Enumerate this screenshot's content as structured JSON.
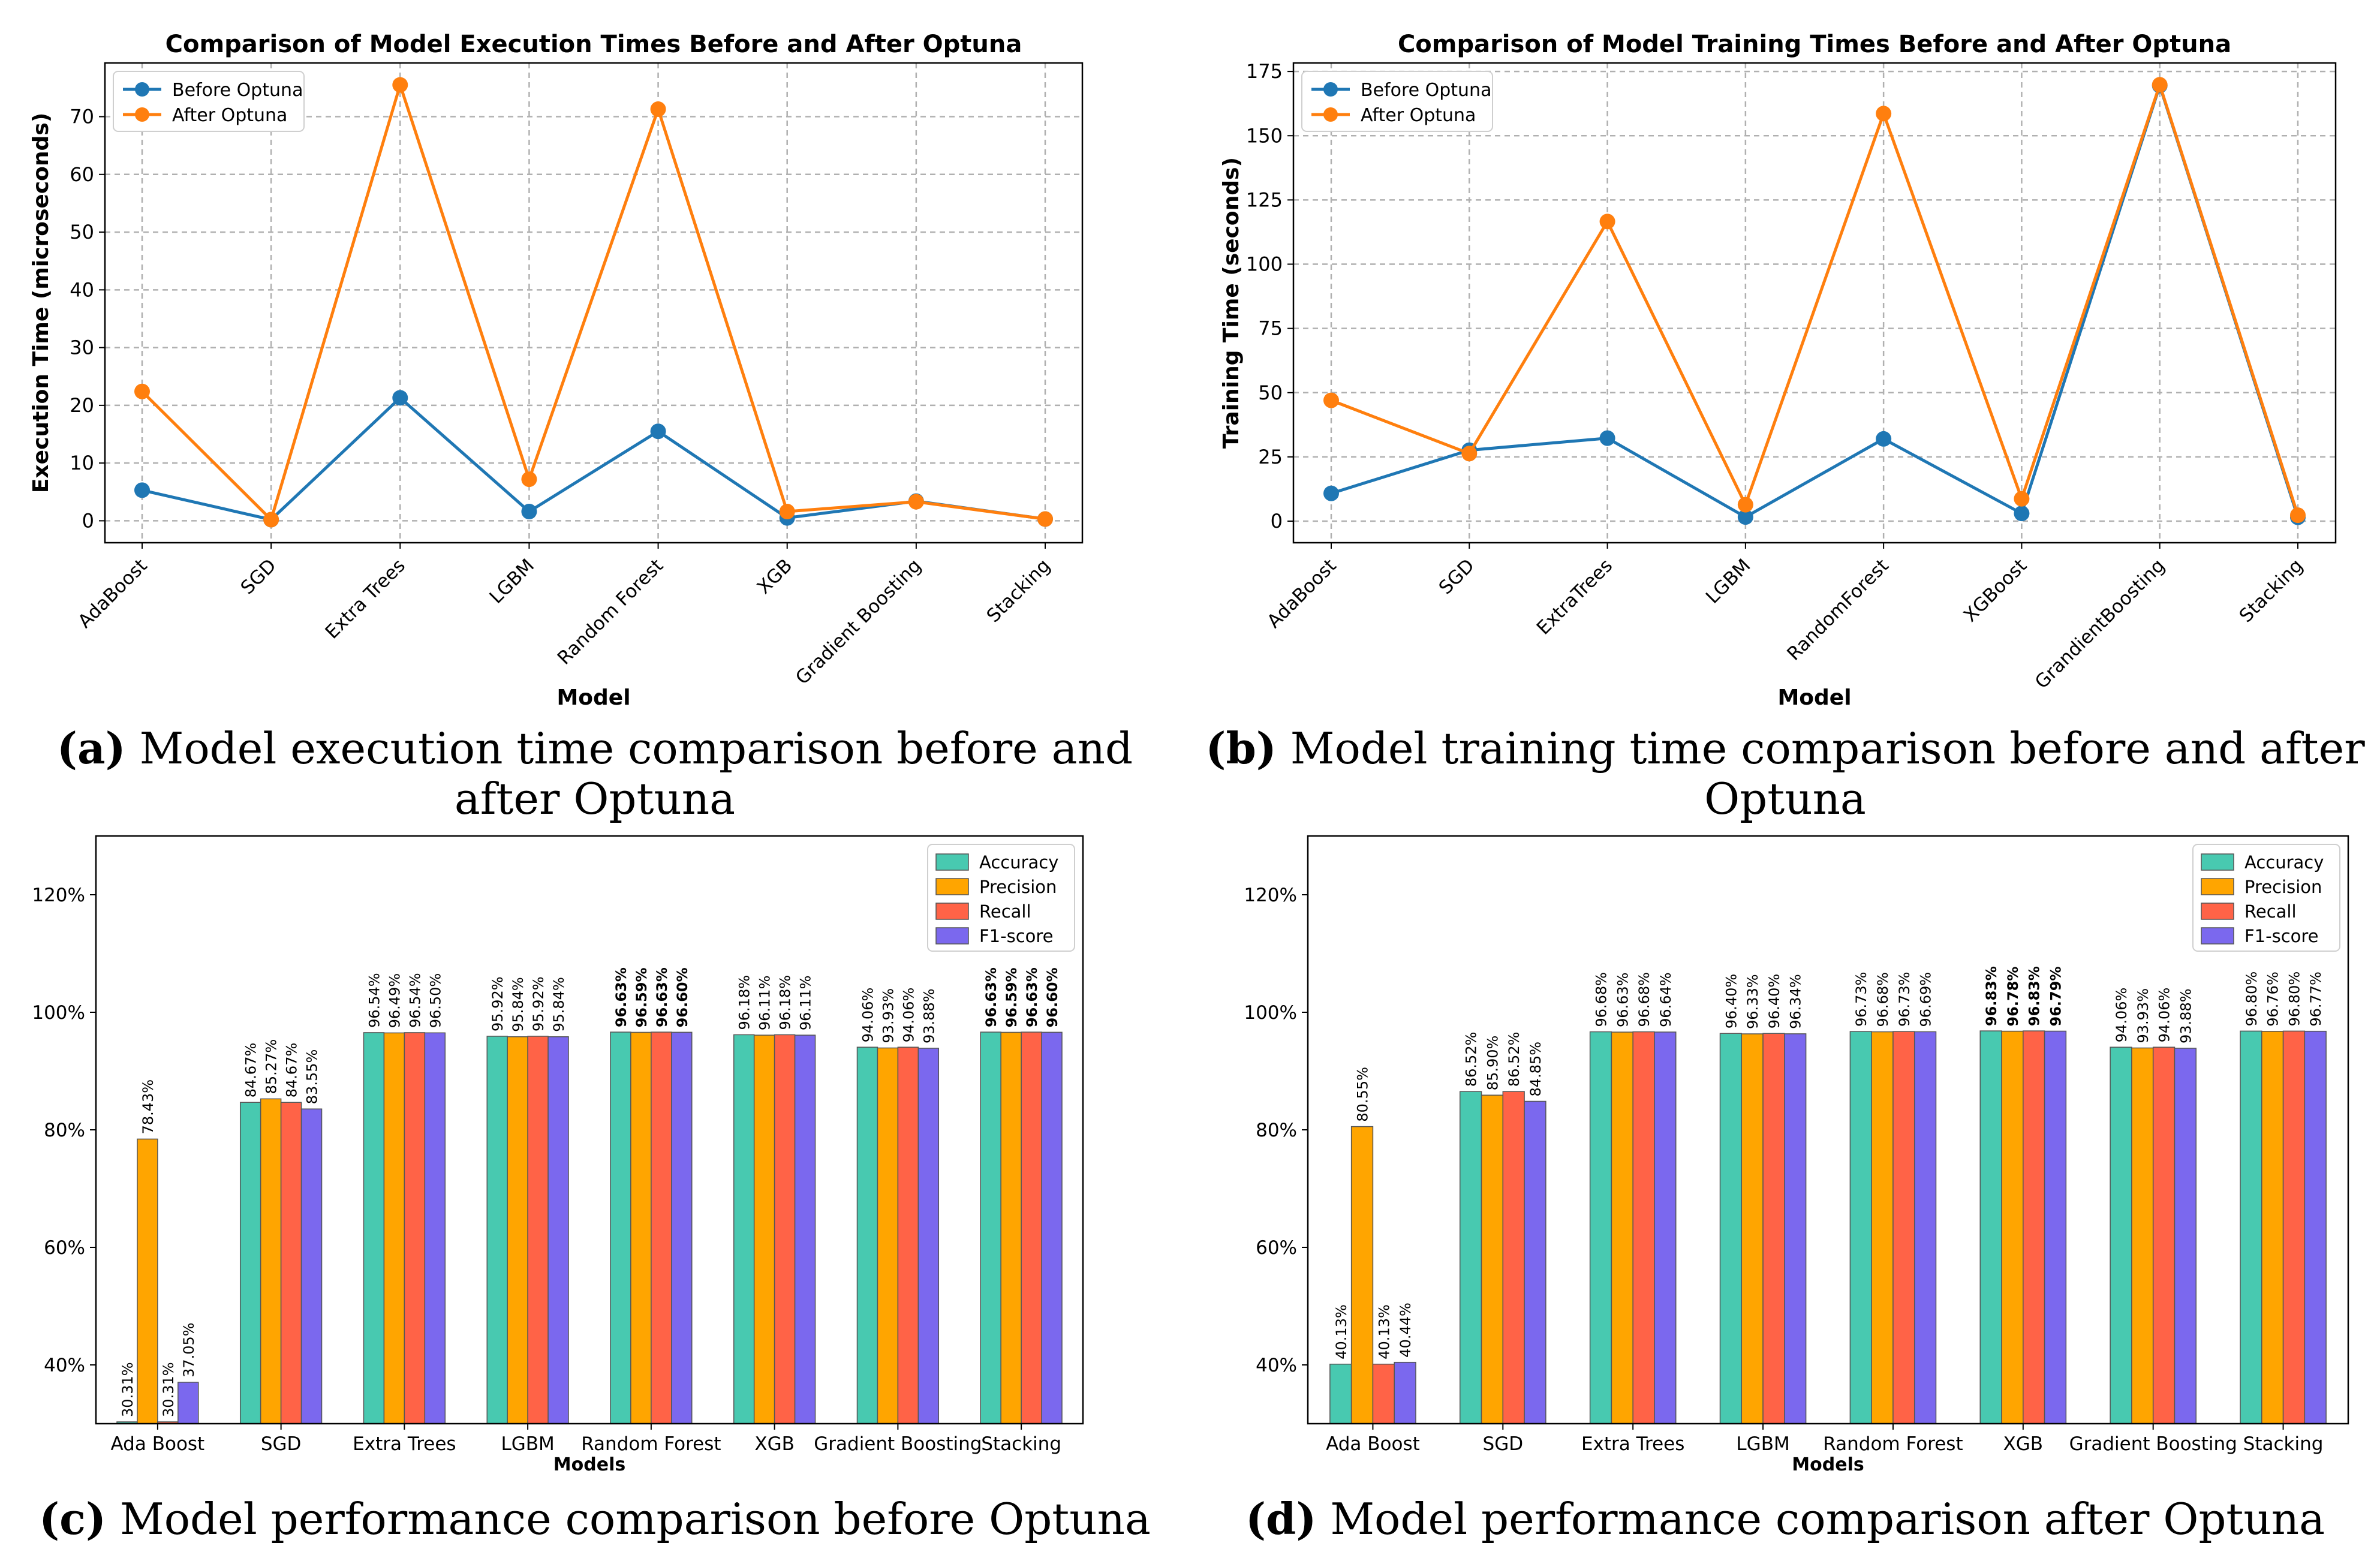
{
  "chart_data": [
    {
      "id": "a",
      "type": "line",
      "title": "Comparison of Model Execution Times Before and After Optuna",
      "xlabel": "Model",
      "ylabel": "Execution Time (microseconds)",
      "categories": [
        "AdaBoost",
        "SGD",
        "Extra Trees",
        "LGBM",
        "Random Forest",
        "XGB",
        "Gradient Boosting",
        "Stacking"
      ],
      "series": [
        {
          "name": "Before Optuna",
          "color": "#1f77b4",
          "values": [
            5.3,
            0.2,
            21.3,
            1.6,
            15.5,
            0.5,
            3.4,
            0.3
          ]
        },
        {
          "name": "After Optuna",
          "color": "#ff7f0e",
          "values": [
            22.4,
            0.2,
            75.5,
            7.2,
            71.3,
            1.6,
            3.3,
            0.3
          ]
        }
      ],
      "ylim": [
        -3.8,
        79.3
      ],
      "yticks": [
        0,
        10,
        20,
        30,
        40,
        50,
        60,
        70
      ],
      "grid": true,
      "legend": "upper-left"
    },
    {
      "id": "b",
      "type": "line",
      "title": "Comparison of Model Training Times Before and After Optuna",
      "xlabel": "Model",
      "ylabel": "Training Time (seconds)",
      "categories": [
        "AdaBoost",
        "SGD",
        "ExtraTrees",
        "LGBM",
        "RandomForest",
        "XGBoost",
        "GrandientBoosting",
        "Stacking"
      ],
      "series": [
        {
          "name": "Before Optuna",
          "color": "#1f77b4",
          "values": [
            10.8,
            27.6,
            32.3,
            1.6,
            32.0,
            3.0,
            169.5,
            1.5
          ]
        },
        {
          "name": "After Optuna",
          "color": "#ff7f0e",
          "values": [
            47.0,
            26.3,
            116.6,
            6.4,
            158.6,
            8.7,
            169.8,
            2.3
          ]
        }
      ],
      "ylim": [
        -8.4,
        178.3
      ],
      "yticks": [
        0,
        25,
        50,
        75,
        100,
        125,
        150,
        175
      ],
      "grid": true,
      "legend": "upper-left"
    },
    {
      "id": "c",
      "type": "bar",
      "xlabel": "Models",
      "categories": [
        "Ada Boost",
        "SGD",
        "Extra Trees",
        "LGBM",
        "Random Forest",
        "XGB",
        "Gradient Boosting",
        "Stacking"
      ],
      "series": [
        {
          "name": "Accuracy",
          "color": "#48c9b0",
          "values": [
            30.31,
            84.67,
            96.54,
            95.92,
            96.63,
            96.18,
            94.06,
            96.63
          ],
          "labels": [
            "30.31%",
            "84.67%",
            "96.54%",
            "95.92%",
            "96.63%",
            "96.18%",
            "94.06%",
            "96.63%"
          ]
        },
        {
          "name": "Precision",
          "color": "#ffa500",
          "values": [
            78.43,
            85.27,
            96.49,
            95.84,
            96.59,
            96.11,
            93.93,
            96.59
          ],
          "labels": [
            "78.43%",
            "85.27%",
            "96.49%",
            "95.84%",
            "96.59%",
            "96.11%",
            "93.93%",
            "96.59%"
          ]
        },
        {
          "name": "Recall",
          "color": "#ff6347",
          "values": [
            30.31,
            84.67,
            96.54,
            95.92,
            96.63,
            96.18,
            94.06,
            96.63
          ],
          "labels": [
            "30.31%",
            "84.67%",
            "96.54%",
            "95.92%",
            "96.63%",
            "96.18%",
            "94.06%",
            "96.63%"
          ]
        },
        {
          "name": "F1-score",
          "color": "#7b68ee",
          "values": [
            37.05,
            83.55,
            96.5,
            95.84,
            96.6,
            96.11,
            93.88,
            96.6
          ],
          "labels": [
            "37.05%",
            "83.55%",
            "96.50%",
            "95.84%",
            "96.60%",
            "96.11%",
            "93.88%",
            "96.60%"
          ]
        }
      ],
      "bold_groups": [
        4,
        7
      ],
      "ylim": [
        30,
        130
      ],
      "yticks": [
        40,
        60,
        80,
        100,
        120
      ],
      "ytick_labels": [
        "40%",
        "60%",
        "80%",
        "100%",
        "120%"
      ],
      "legend": "upper-right"
    },
    {
      "id": "d",
      "type": "bar",
      "xlabel": "Models",
      "categories": [
        "Ada Boost",
        "SGD",
        "Extra Trees",
        "LGBM",
        "Random Forest",
        "XGB",
        "Gradient Boosting",
        "Stacking"
      ],
      "series": [
        {
          "name": "Accuracy",
          "color": "#48c9b0",
          "values": [
            40.13,
            86.52,
            96.68,
            96.4,
            96.73,
            96.83,
            94.06,
            96.8
          ],
          "labels": [
            "40.13%",
            "86.52%",
            "96.68%",
            "96.40%",
            "96.73%",
            "96.83%",
            "94.06%",
            "96.80%"
          ]
        },
        {
          "name": "Precision",
          "color": "#ffa500",
          "values": [
            80.55,
            85.9,
            96.63,
            96.33,
            96.68,
            96.78,
            93.93,
            96.76
          ],
          "labels": [
            "80.55%",
            "85.90%",
            "96.63%",
            "96.33%",
            "96.68%",
            "96.78%",
            "93.93%",
            "96.76%"
          ]
        },
        {
          "name": "Recall",
          "color": "#ff6347",
          "values": [
            40.13,
            86.52,
            96.68,
            96.4,
            96.73,
            96.83,
            94.06,
            96.8
          ],
          "labels": [
            "40.13%",
            "86.52%",
            "96.68%",
            "96.40%",
            "96.73%",
            "96.83%",
            "94.06%",
            "96.80%"
          ]
        },
        {
          "name": "F1-score",
          "color": "#7b68ee",
          "values": [
            40.44,
            84.85,
            96.64,
            96.34,
            96.69,
            96.79,
            93.88,
            96.77
          ],
          "labels": [
            "40.44%",
            "84.85%",
            "96.64%",
            "96.34%",
            "96.69%",
            "96.79%",
            "93.88%",
            "96.77%"
          ]
        }
      ],
      "bold_groups": [
        5
      ],
      "ylim": [
        30,
        130
      ],
      "yticks": [
        40,
        60,
        80,
        100,
        120
      ],
      "ytick_labels": [
        "40%",
        "60%",
        "80%",
        "100%",
        "120%"
      ],
      "legend": "upper-right"
    }
  ],
  "captions": {
    "a": {
      "letter": "(a)",
      "text": "Model execution time comparison before and after Optuna"
    },
    "b": {
      "letter": "(b)",
      "text": "Model training time comparison before and after Optuna"
    },
    "c": {
      "letter": "(c)",
      "text": "Model performance comparison before Optuna"
    },
    "d": {
      "letter": "(d)",
      "text": "Model performance comparison after Optuna"
    }
  }
}
